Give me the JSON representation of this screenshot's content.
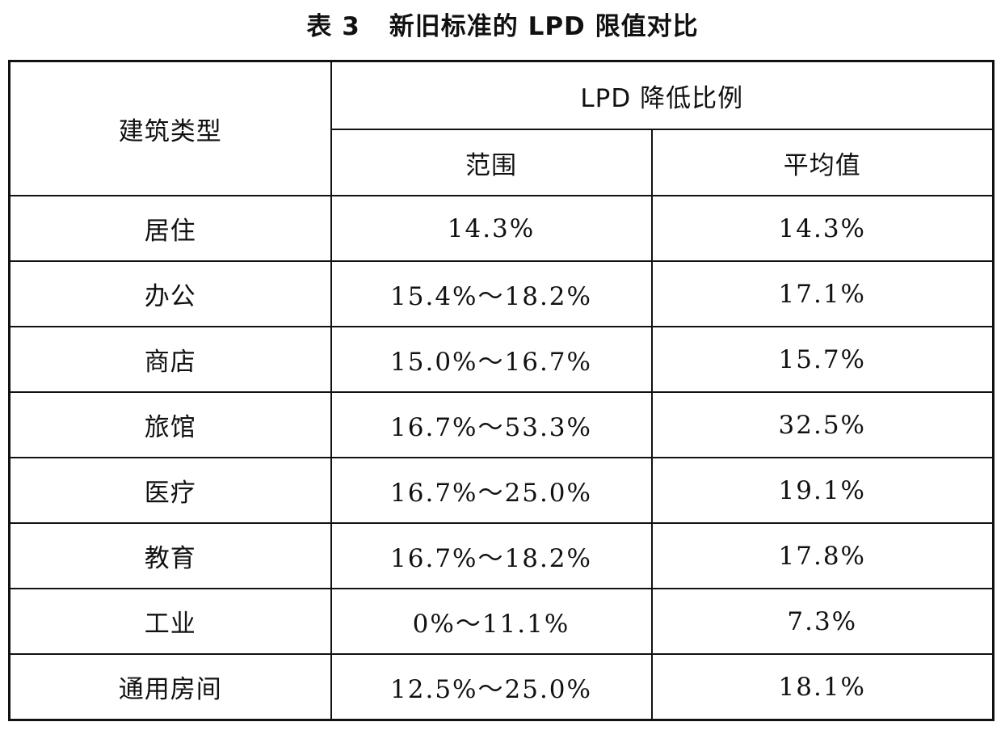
{
  "caption": {
    "number": "表 3",
    "title": "新旧标准的 LPD 限值对比"
  },
  "table": {
    "headers": {
      "building_type": "建筑类型",
      "reduction_group": "LPD 降低比例",
      "range": "范围",
      "average": "平均值"
    },
    "rows": [
      {
        "type": "居住",
        "range": "14.3%",
        "average": "14.3%"
      },
      {
        "type": "办公",
        "range": "15.4%～18.2%",
        "average": "17.1%"
      },
      {
        "type": "商店",
        "range": "15.0%～16.7%",
        "average": "15.7%"
      },
      {
        "type": "旅馆",
        "range": "16.7%～53.3%",
        "average": "32.5%"
      },
      {
        "type": "医疗",
        "range": "16.7%～25.0%",
        "average": "19.1%"
      },
      {
        "type": "教育",
        "range": "16.7%～18.2%",
        "average": "17.8%"
      },
      {
        "type": "工业",
        "range": "0%～11.1%",
        "average": "7.3%"
      },
      {
        "type": "通用房间",
        "range": "12.5%～25.0%",
        "average": "18.1%"
      }
    ]
  }
}
